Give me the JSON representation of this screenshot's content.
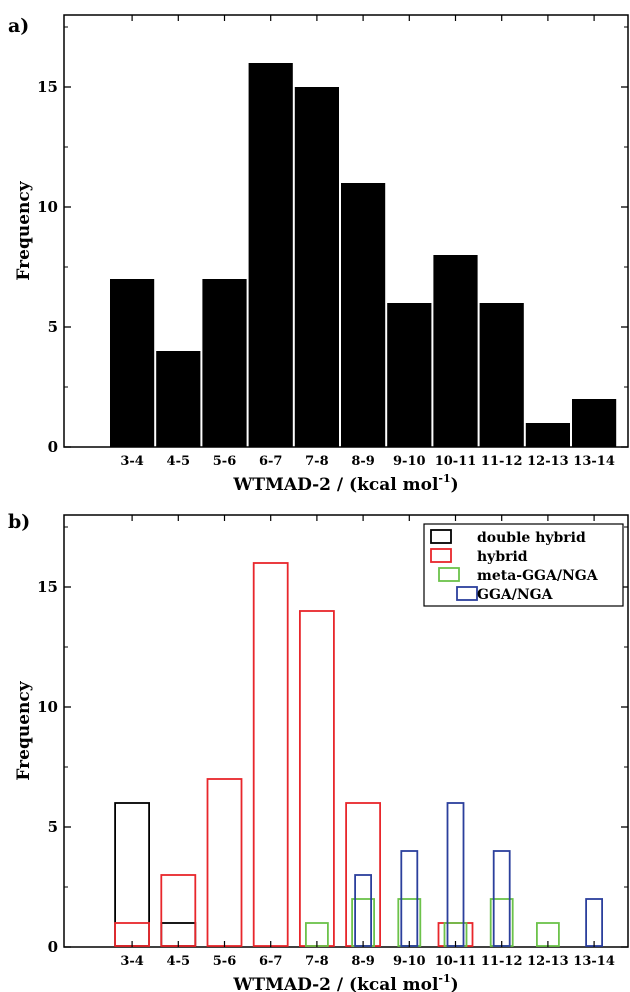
{
  "chart_data": [
    {
      "type": "bar",
      "panel_label": "a)",
      "categories": [
        "3-4",
        "4-5",
        "5-6",
        "6-7",
        "7-8",
        "8-9",
        "9-10",
        "10-11",
        "11-12",
        "12-13",
        "13-14"
      ],
      "values": [
        7,
        4,
        7,
        16,
        15,
        11,
        6,
        8,
        6,
        1,
        2
      ],
      "xlabel": "WTMAD-2 / (kcal mol",
      "xlabel_sup": "-1",
      "xlabel_end": ")",
      "ylabel": "Frequency",
      "ylim": [
        0,
        18
      ],
      "yticks": [
        0,
        5,
        10,
        15
      ],
      "bar_color": "#000000"
    },
    {
      "type": "bar",
      "panel_label": "b)",
      "categories": [
        "3-4",
        "4-5",
        "5-6",
        "6-7",
        "7-8",
        "8-9",
        "9-10",
        "10-11",
        "11-12",
        "12-13",
        "13-14"
      ],
      "series": [
        {
          "name": "double hybrid",
          "color": "#000000",
          "values": [
            6,
            1,
            0,
            0,
            0,
            0,
            0,
            0,
            0,
            0,
            0
          ]
        },
        {
          "name": "hybrid",
          "color": "#e8262b",
          "values": [
            1,
            3,
            7,
            16,
            14,
            6,
            0,
            1,
            0,
            0,
            0
          ]
        },
        {
          "name": "meta-GGA/NGA",
          "color": "#6cc24a",
          "values": [
            0,
            0,
            0,
            0,
            1,
            2,
            2,
            1,
            2,
            1,
            0
          ]
        },
        {
          "name": "GGA/NGA",
          "color": "#2b3f9c",
          "values": [
            0,
            0,
            0,
            0,
            0,
            3,
            4,
            6,
            4,
            0,
            2
          ]
        }
      ],
      "xlabel": "WTMAD-2 / (kcal mol",
      "xlabel_sup": "-1",
      "xlabel_end": ")",
      "ylabel": "Frequency",
      "ylim": [
        0,
        18
      ],
      "yticks": [
        0,
        5,
        10,
        15
      ],
      "legend_position": "top-right"
    }
  ]
}
